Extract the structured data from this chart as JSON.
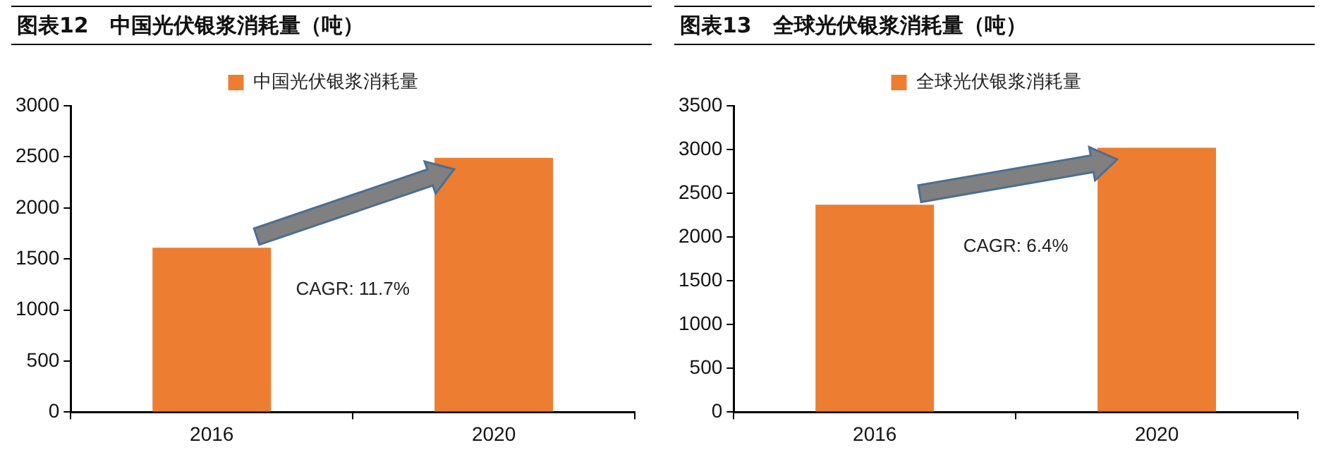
{
  "chart_data": [
    {
      "type": "bar",
      "title": "图表12　中国光伏银浆消耗量（吨）",
      "categories": [
        "2016",
        "2020"
      ],
      "series": [
        {
          "name": "中国光伏银浆消耗量",
          "color": "#ed7d31",
          "values": [
            1610,
            2490
          ]
        }
      ],
      "ylim": [
        0,
        3000
      ],
      "yticks": [
        0,
        500,
        1000,
        1500,
        2000,
        2500,
        3000
      ],
      "grid": false,
      "legend": "top",
      "annotations": [
        "CAGR: 11.7%"
      ]
    },
    {
      "type": "bar",
      "title": "图表13　全球光伏银浆消耗量（吨）",
      "categories": [
        "2016",
        "2020"
      ],
      "series": [
        {
          "name": "全球光伏银浆消耗量",
          "color": "#ed7d31",
          "values": [
            2370,
            3020
          ]
        }
      ],
      "ylim": [
        0,
        3500
      ],
      "yticks": [
        0,
        500,
        1000,
        1500,
        2000,
        2500,
        3000,
        3500
      ],
      "grid": false,
      "legend": "top",
      "annotations": [
        "CAGR: 6.4%"
      ]
    }
  ]
}
